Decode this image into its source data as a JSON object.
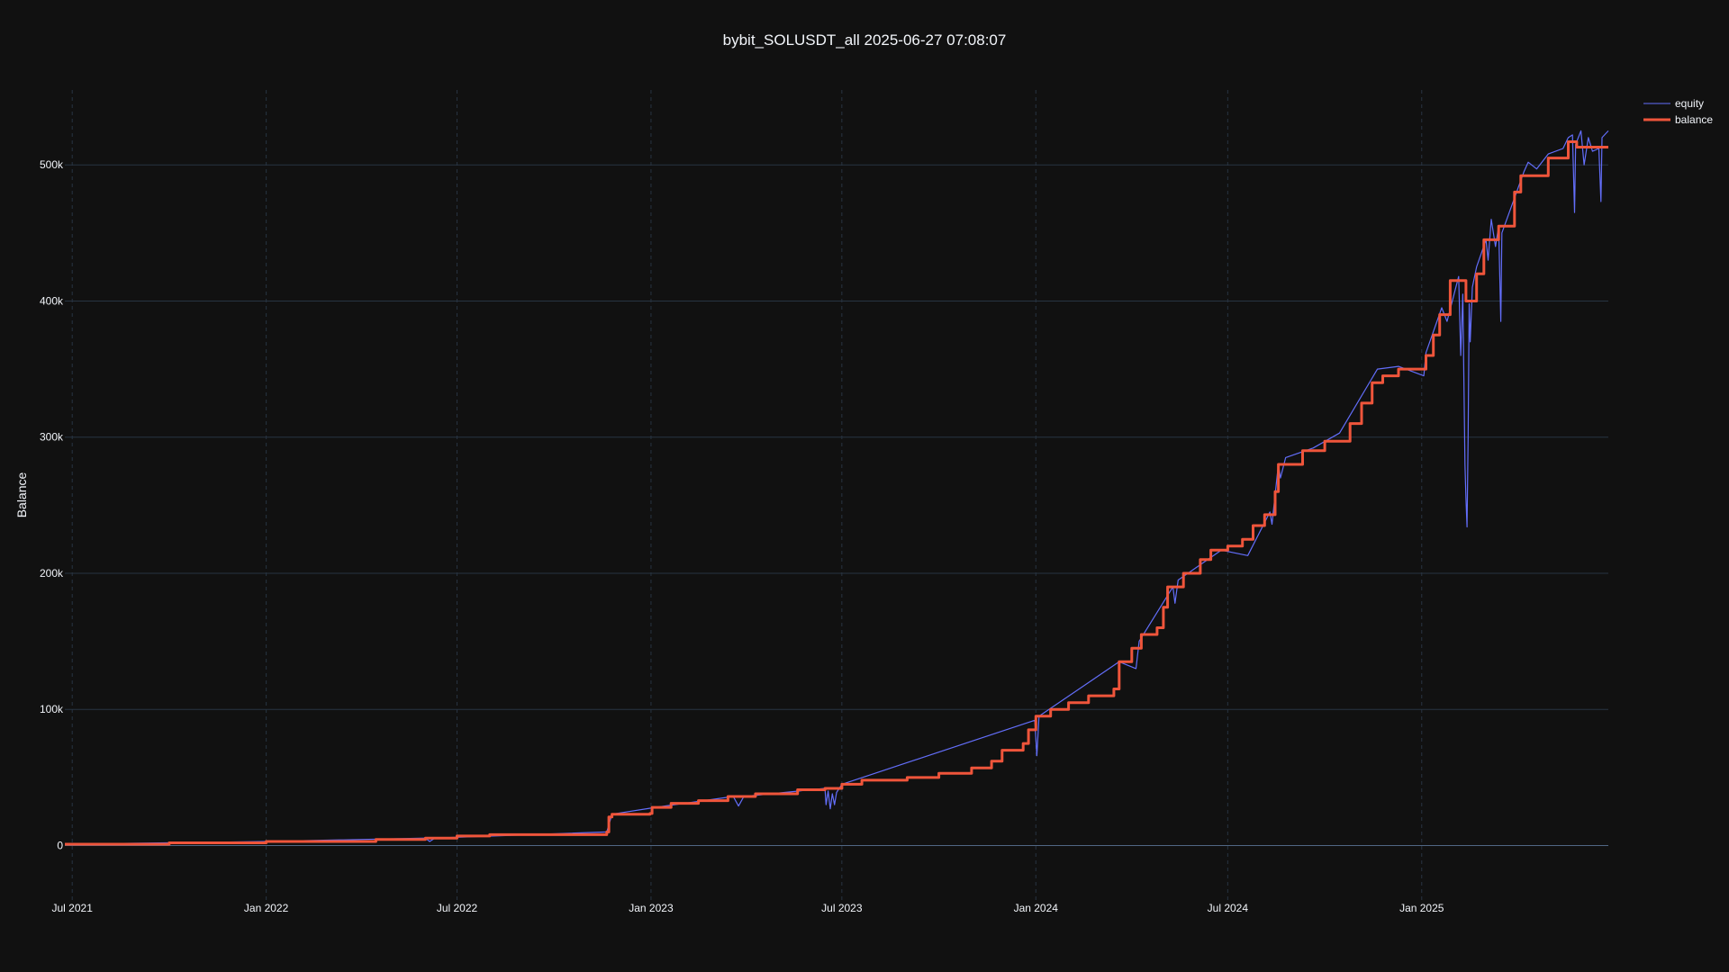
{
  "colors": {
    "background": "#111111",
    "grid": "#283442",
    "equity": "#636efa",
    "balance": "#ef553b",
    "text": "#f2f5fa"
  },
  "chart_data": {
    "type": "line",
    "title": "bybit_SOLUSDT_all 2025-06-27 07:08:07",
    "ylabel": "Balance",
    "xlabel": "",
    "x_type": "date",
    "xlim": [
      "2021-06-24",
      "2025-06-27"
    ],
    "ylim": [
      -40000,
      555000
    ],
    "x_ticks": [
      {
        "date": "2021-07-01",
        "label": "Jul 2021"
      },
      {
        "date": "2022-01-01",
        "label": "Jan 2022"
      },
      {
        "date": "2022-07-01",
        "label": "Jul 2022"
      },
      {
        "date": "2023-01-01",
        "label": "Jan 2023"
      },
      {
        "date": "2023-07-01",
        "label": "Jul 2023"
      },
      {
        "date": "2024-01-01",
        "label": "Jan 2024"
      },
      {
        "date": "2024-07-01",
        "label": "Jul 2024"
      },
      {
        "date": "2025-01-01",
        "label": "Jan 2025"
      }
    ],
    "y_ticks": [
      {
        "value": 0,
        "label": "0"
      },
      {
        "value": 100000,
        "label": "100k"
      },
      {
        "value": 200000,
        "label": "200k"
      },
      {
        "value": 300000,
        "label": "300k"
      },
      {
        "value": 400000,
        "label": "400k"
      },
      {
        "value": 500000,
        "label": "500k"
      }
    ],
    "grid": true,
    "legend": "top-right, outside plot",
    "series": [
      {
        "name": "balance",
        "style": "step",
        "points": [
          [
            "2021-06-24",
            1000
          ],
          [
            "2021-10-01",
            2000
          ],
          [
            "2022-01-01",
            3000
          ],
          [
            "2022-04-15",
            4500
          ],
          [
            "2022-06-01",
            5500
          ],
          [
            "2022-07-01",
            7000
          ],
          [
            "2022-08-01",
            8000
          ],
          [
            "2022-11-20",
            10000
          ],
          [
            "2022-11-22",
            21000
          ],
          [
            "2022-11-25",
            23000
          ],
          [
            "2022-12-31",
            23500
          ],
          [
            "2023-01-02",
            28000
          ],
          [
            "2023-01-20",
            31000
          ],
          [
            "2023-02-15",
            33000
          ],
          [
            "2023-03-15",
            36000
          ],
          [
            "2023-04-10",
            38000
          ],
          [
            "2023-05-20",
            41000
          ],
          [
            "2023-06-15",
            42000
          ],
          [
            "2023-07-01",
            45000
          ],
          [
            "2023-07-20",
            48000
          ],
          [
            "2023-09-01",
            50000
          ],
          [
            "2023-10-01",
            53000
          ],
          [
            "2023-11-01",
            57000
          ],
          [
            "2023-11-20",
            62000
          ],
          [
            "2023-11-30",
            70000
          ],
          [
            "2023-12-20",
            75000
          ],
          [
            "2023-12-25",
            85000
          ],
          [
            "2024-01-01",
            95000
          ],
          [
            "2024-01-15",
            100000
          ],
          [
            "2024-02-01",
            105000
          ],
          [
            "2024-02-20",
            110000
          ],
          [
            "2024-03-15",
            115000
          ],
          [
            "2024-03-20",
            135000
          ],
          [
            "2024-04-01",
            145000
          ],
          [
            "2024-04-10",
            155000
          ],
          [
            "2024-04-25",
            160000
          ],
          [
            "2024-05-01",
            175000
          ],
          [
            "2024-05-05",
            190000
          ],
          [
            "2024-05-20",
            200000
          ],
          [
            "2024-06-05",
            210000
          ],
          [
            "2024-06-15",
            217000
          ],
          [
            "2024-07-01",
            220000
          ],
          [
            "2024-07-15",
            225000
          ],
          [
            "2024-07-25",
            235000
          ],
          [
            "2024-08-05",
            243000
          ],
          [
            "2024-08-15",
            260000
          ],
          [
            "2024-08-18",
            280000
          ],
          [
            "2024-09-10",
            290000
          ],
          [
            "2024-10-01",
            297000
          ],
          [
            "2024-10-25",
            310000
          ],
          [
            "2024-11-05",
            325000
          ],
          [
            "2024-11-15",
            340000
          ],
          [
            "2024-11-25",
            345000
          ],
          [
            "2024-12-10",
            350000
          ],
          [
            "2024-12-25",
            350000
          ],
          [
            "2025-01-05",
            360000
          ],
          [
            "2025-01-12",
            375000
          ],
          [
            "2025-01-18",
            390000
          ],
          [
            "2025-01-28",
            415000
          ],
          [
            "2025-02-12",
            400000
          ],
          [
            "2025-02-22",
            420000
          ],
          [
            "2025-03-01",
            445000
          ],
          [
            "2025-03-15",
            455000
          ],
          [
            "2025-03-30",
            480000
          ],
          [
            "2025-04-05",
            492000
          ],
          [
            "2025-05-01",
            505000
          ],
          [
            "2025-05-20",
            517000
          ],
          [
            "2025-05-28",
            513000
          ],
          [
            "2025-06-27",
            513000
          ]
        ]
      },
      {
        "name": "equity",
        "style": "line",
        "points": [
          [
            "2021-06-24",
            1000
          ],
          [
            "2022-01-01",
            3000
          ],
          [
            "2022-06-01",
            5500
          ],
          [
            "2022-06-05",
            3000
          ],
          [
            "2022-06-10",
            5500
          ],
          [
            "2022-11-20",
            10000
          ],
          [
            "2022-11-25",
            23000
          ],
          [
            "2023-01-05",
            28000
          ],
          [
            "2023-03-20",
            36000
          ],
          [
            "2023-03-25",
            29000
          ],
          [
            "2023-03-30",
            36000
          ],
          [
            "2023-06-15",
            42000
          ],
          [
            "2023-06-16",
            30000
          ],
          [
            "2023-06-18",
            40000
          ],
          [
            "2023-06-20",
            27000
          ],
          [
            "2023-06-22",
            38000
          ],
          [
            "2023-06-24",
            30000
          ],
          [
            "2023-06-26",
            39000
          ],
          [
            "2023-07-01",
            45000
          ],
          [
            "2023-12-31",
            92000
          ],
          [
            "2024-01-02",
            66000
          ],
          [
            "2024-01-04",
            95000
          ],
          [
            "2024-03-20",
            135000
          ],
          [
            "2024-04-05",
            130000
          ],
          [
            "2024-04-08",
            150000
          ],
          [
            "2024-05-10",
            190000
          ],
          [
            "2024-05-12",
            178000
          ],
          [
            "2024-05-15",
            195000
          ],
          [
            "2024-06-25",
            217000
          ],
          [
            "2024-07-20",
            213000
          ],
          [
            "2024-08-10",
            245000
          ],
          [
            "2024-08-12",
            236000
          ],
          [
            "2024-08-18",
            280000
          ],
          [
            "2024-08-20",
            270000
          ],
          [
            "2024-08-25",
            285000
          ],
          [
            "2024-09-20",
            292000
          ],
          [
            "2024-10-15",
            303000
          ],
          [
            "2024-11-20",
            350000
          ],
          [
            "2024-12-10",
            352000
          ],
          [
            "2025-01-03",
            345000
          ],
          [
            "2025-01-05",
            362000
          ],
          [
            "2025-01-20",
            395000
          ],
          [
            "2025-01-25",
            385000
          ],
          [
            "2025-02-05",
            418000
          ],
          [
            "2025-02-07",
            360000
          ],
          [
            "2025-02-09",
            405000
          ],
          [
            "2025-02-11",
            280000
          ],
          [
            "2025-02-12",
            255000
          ],
          [
            "2025-02-13",
            234000
          ],
          [
            "2025-02-14",
            300000
          ],
          [
            "2025-02-15",
            398000
          ],
          [
            "2025-02-16",
            370000
          ],
          [
            "2025-02-18",
            410000
          ],
          [
            "2025-02-22",
            425000
          ],
          [
            "2025-03-03",
            445000
          ],
          [
            "2025-03-05",
            430000
          ],
          [
            "2025-03-08",
            460000
          ],
          [
            "2025-03-12",
            440000
          ],
          [
            "2025-03-15",
            455000
          ],
          [
            "2025-03-17",
            385000
          ],
          [
            "2025-03-18",
            450000
          ],
          [
            "2025-04-08",
            495000
          ],
          [
            "2025-04-12",
            502000
          ],
          [
            "2025-04-20",
            497000
          ],
          [
            "2025-05-01",
            508000
          ],
          [
            "2025-05-15",
            512000
          ],
          [
            "2025-05-20",
            520000
          ],
          [
            "2025-05-24",
            522000
          ],
          [
            "2025-05-26",
            465000
          ],
          [
            "2025-05-27",
            515000
          ],
          [
            "2025-06-01",
            525000
          ],
          [
            "2025-06-04",
            500000
          ],
          [
            "2025-06-08",
            520000
          ],
          [
            "2025-06-12",
            510000
          ],
          [
            "2025-06-18",
            512000
          ],
          [
            "2025-06-20",
            473000
          ],
          [
            "2025-06-21",
            520000
          ],
          [
            "2025-06-27",
            525000
          ]
        ]
      }
    ]
  }
}
